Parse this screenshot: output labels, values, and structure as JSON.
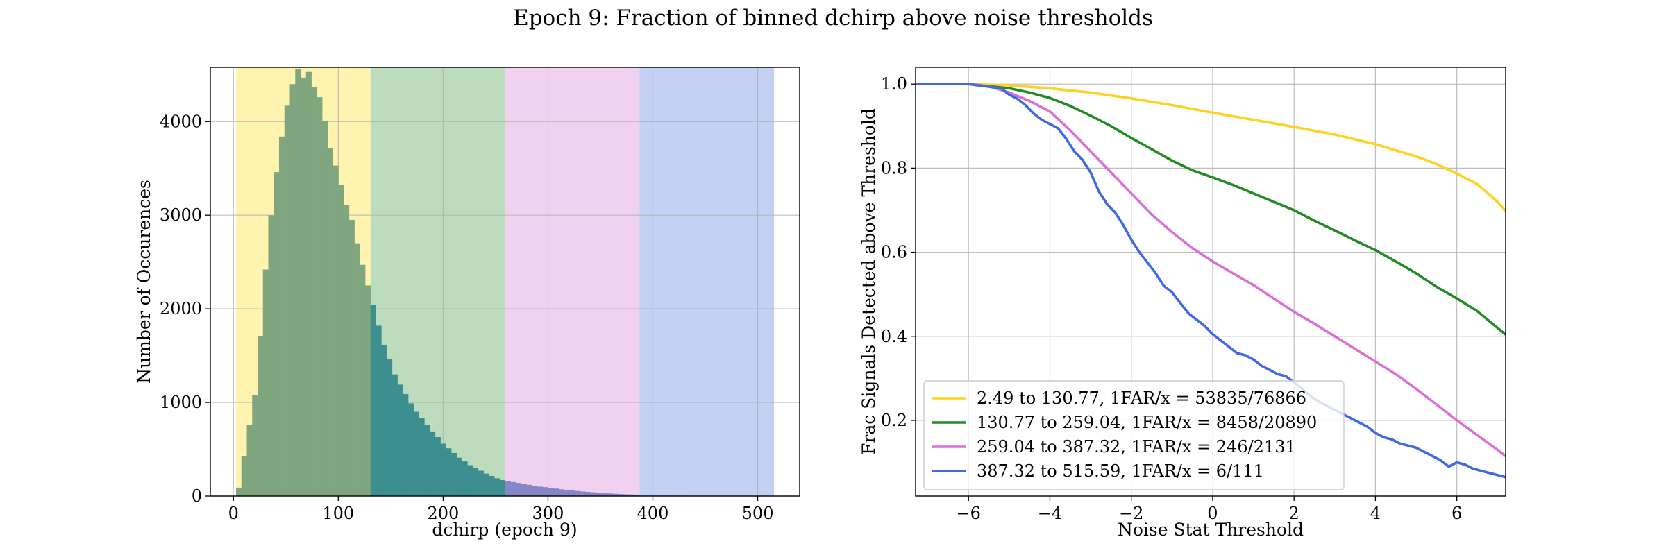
{
  "figure": {
    "title": "Epoch 9: Fraction of binned dchirp above noise thresholds"
  },
  "chart_data": [
    {
      "type": "bar",
      "subtype": "histogram",
      "xlabel": "dchirp (epoch 9)",
      "ylabel": "Number of Occurences",
      "xlim": [
        -22,
        540
      ],
      "ylim": [
        0,
        4580
      ],
      "xticks": [
        0,
        100,
        200,
        300,
        400,
        500
      ],
      "yticks": [
        0,
        1000,
        2000,
        3000,
        4000
      ],
      "grid": true,
      "bands": [
        {
          "from": 2.49,
          "to": 130.77,
          "color": "#fff3b0",
          "label": "2.49 to 130.77"
        },
        {
          "from": 130.77,
          "to": 259.04,
          "color": "#bddcbd",
          "label": "130.77 to 259.04"
        },
        {
          "from": 259.04,
          "to": 387.32,
          "color": "#f0d2f0",
          "label": "259.04 to 387.32"
        },
        {
          "from": 387.32,
          "to": 515.59,
          "color": "#c4d0f4",
          "label": "387.32 to 515.59"
        }
      ],
      "bin_start": 2.49,
      "bin_width": 5.13,
      "bin_counts": [
        90,
        430,
        760,
        1080,
        1710,
        2420,
        3000,
        3460,
        3840,
        4170,
        4400,
        4560,
        4470,
        4530,
        4370,
        4260,
        4010,
        3720,
        3530,
        3320,
        3110,
        2950,
        2700,
        2470,
        2250,
        2040,
        1820,
        1610,
        1460,
        1300,
        1190,
        1090,
        990,
        900,
        830,
        760,
        690,
        630,
        560,
        510,
        460,
        410,
        370,
        330,
        300,
        270,
        240,
        215,
        190,
        170,
        160,
        150,
        140,
        130,
        120,
        110,
        100,
        95,
        85,
        80,
        72,
        66,
        60,
        54,
        48,
        44,
        40,
        36,
        32,
        28,
        24,
        21,
        19,
        17,
        15,
        13,
        12,
        11,
        10,
        9,
        8,
        7,
        6,
        5,
        5,
        4,
        4,
        3,
        3,
        3,
        2,
        2,
        2,
        1,
        1,
        1,
        1,
        1,
        1,
        1
      ],
      "bar_colors": [
        "#7fa67f",
        "#3d8f8f",
        "#8585c7",
        "#9aa9e7"
      ]
    },
    {
      "type": "line",
      "xlabel": "Noise Stat Threshold",
      "ylabel": "Frac Signals Detected above Threshold",
      "xlim": [
        -7.3,
        7.2
      ],
      "ylim": [
        0.02,
        1.04
      ],
      "xticks": [
        -6,
        -4,
        -2,
        0,
        2,
        4,
        6
      ],
      "xtick_labels": [
        "−6",
        "−4",
        "−2",
        "0",
        "2",
        "4",
        "6"
      ],
      "yticks": [
        0.2,
        0.4,
        0.6,
        0.8,
        1.0
      ],
      "ytick_labels": [
        "0.2",
        "0.4",
        "0.6",
        "0.8",
        "1.0"
      ],
      "grid": true,
      "legend_position": "lower-left",
      "series": [
        {
          "name": "2.49 to 130.77, 1FAR/x = 53835/76866",
          "color": "#ffd21f",
          "x": [
            -7.3,
            -6,
            -5,
            -4,
            -3,
            -2,
            -1,
            0,
            1,
            2,
            3,
            4,
            5,
            5.5,
            6,
            6.5,
            7,
            7.2
          ],
          "y": [
            1.0,
            1.0,
            0.997,
            0.99,
            0.98,
            0.966,
            0.95,
            0.932,
            0.915,
            0.898,
            0.88,
            0.857,
            0.828,
            0.81,
            0.787,
            0.762,
            0.72,
            0.698
          ]
        },
        {
          "name": "130.77 to 259.04, 1FAR/x = 8458/20890",
          "color": "#228b22",
          "x": [
            -7.3,
            -6,
            -5.5,
            -5,
            -4.5,
            -4,
            -3.5,
            -3,
            -2.5,
            -2,
            -1.5,
            -1,
            -0.5,
            0,
            0.5,
            1,
            1.5,
            2,
            2.5,
            3,
            3.5,
            4,
            4.5,
            5,
            5.5,
            6,
            6.5,
            7,
            7.2
          ],
          "y": [
            1.0,
            1.0,
            0.995,
            0.99,
            0.98,
            0.967,
            0.948,
            0.925,
            0.9,
            0.872,
            0.845,
            0.818,
            0.795,
            0.778,
            0.76,
            0.74,
            0.72,
            0.7,
            0.675,
            0.652,
            0.628,
            0.605,
            0.578,
            0.55,
            0.518,
            0.49,
            0.46,
            0.42,
            0.404
          ]
        },
        {
          "name": "259.04 to 387.32, 1FAR/x = 246/2131",
          "color": "#da70d6",
          "x": [
            -7.3,
            -6,
            -5.5,
            -5,
            -4.5,
            -4,
            -3.5,
            -3,
            -2.5,
            -2,
            -1.5,
            -1,
            -0.5,
            0,
            0.5,
            1,
            1.5,
            2,
            2.5,
            3,
            3.5,
            4,
            4.5,
            5,
            5.5,
            6,
            6.5,
            7,
            7.2
          ],
          "y": [
            1.0,
            1.0,
            0.995,
            0.98,
            0.96,
            0.935,
            0.89,
            0.84,
            0.79,
            0.74,
            0.69,
            0.648,
            0.61,
            0.578,
            0.55,
            0.522,
            0.49,
            0.458,
            0.43,
            0.4,
            0.37,
            0.34,
            0.31,
            0.275,
            0.238,
            0.2,
            0.165,
            0.13,
            0.115
          ]
        },
        {
          "name": "387.32 to 515.59, 1FAR/x = 6/111",
          "color": "#4169e1",
          "x": [
            -7.3,
            -6,
            -5.2,
            -5,
            -4.8,
            -4.6,
            -4.4,
            -4.2,
            -4,
            -3.8,
            -3.6,
            -3.4,
            -3.2,
            -3,
            -2.8,
            -2.6,
            -2.4,
            -2.2,
            -2,
            -1.8,
            -1.6,
            -1.4,
            -1.2,
            -1,
            -0.8,
            -0.6,
            -0.4,
            -0.2,
            0,
            0.2,
            0.4,
            0.6,
            0.8,
            1,
            1.2,
            1.4,
            1.6,
            1.8,
            2,
            2.2,
            2.4,
            2.6,
            2.8,
            3,
            3.2,
            3.4,
            3.6,
            3.8,
            4,
            4.2,
            4.4,
            4.6,
            4.8,
            5,
            5.2,
            5.4,
            5.6,
            5.8,
            6,
            6.2,
            6.4,
            6.6,
            6.8,
            7,
            7.2
          ],
          "y": [
            1.0,
            1.0,
            0.99,
            0.975,
            0.965,
            0.95,
            0.93,
            0.915,
            0.905,
            0.895,
            0.87,
            0.84,
            0.82,
            0.79,
            0.745,
            0.715,
            0.695,
            0.665,
            0.63,
            0.6,
            0.575,
            0.55,
            0.52,
            0.505,
            0.48,
            0.455,
            0.44,
            0.425,
            0.405,
            0.39,
            0.375,
            0.36,
            0.355,
            0.345,
            0.33,
            0.32,
            0.31,
            0.305,
            0.29,
            0.275,
            0.258,
            0.245,
            0.235,
            0.225,
            0.215,
            0.205,
            0.195,
            0.185,
            0.17,
            0.16,
            0.155,
            0.145,
            0.14,
            0.135,
            0.125,
            0.115,
            0.105,
            0.09,
            0.1,
            0.095,
            0.085,
            0.08,
            0.075,
            0.07,
            0.065
          ]
        }
      ]
    }
  ]
}
